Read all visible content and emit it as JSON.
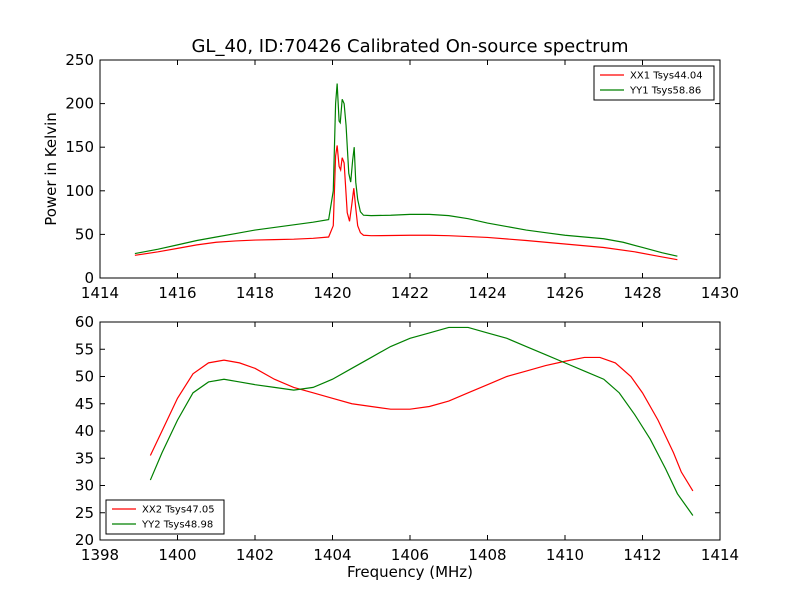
{
  "chart_data": [
    {
      "type": "line",
      "title": "GL_40, ID:70426 Calibrated On-source spectrum",
      "xlabel": "",
      "ylabel": "Power in Kelvin",
      "xlim": [
        1414,
        1430
      ],
      "ylim": [
        0,
        250
      ],
      "xticks": [
        1414,
        1416,
        1418,
        1420,
        1422,
        1424,
        1426,
        1428,
        1430
      ],
      "yticks": [
        0,
        50,
        100,
        150,
        200,
        250
      ],
      "legend_position": "top-right",
      "grid": false,
      "series": [
        {
          "name": "XX1 Tsys44.04",
          "color": "#ff0000",
          "points": [
            [
              1414.9,
              26
            ],
            [
              1415.5,
              30
            ],
            [
              1416.0,
              34
            ],
            [
              1416.5,
              38
            ],
            [
              1417.0,
              41
            ],
            [
              1417.5,
              42.5
            ],
            [
              1418.0,
              43.5
            ],
            [
              1418.5,
              44
            ],
            [
              1419.0,
              44.5
            ],
            [
              1419.5,
              45.5
            ],
            [
              1419.9,
              47
            ],
            [
              1420.02,
              60
            ],
            [
              1420.08,
              140
            ],
            [
              1420.12,
              152
            ],
            [
              1420.17,
              128
            ],
            [
              1420.21,
              124
            ],
            [
              1420.25,
              138
            ],
            [
              1420.3,
              132
            ],
            [
              1420.38,
              75
            ],
            [
              1420.44,
              65
            ],
            [
              1420.5,
              85
            ],
            [
              1420.55,
              103
            ],
            [
              1420.6,
              80
            ],
            [
              1420.65,
              60
            ],
            [
              1420.72,
              52
            ],
            [
              1420.8,
              49
            ],
            [
              1421.0,
              48.5
            ],
            [
              1422.0,
              49
            ],
            [
              1422.5,
              49
            ],
            [
              1423.0,
              48.5
            ],
            [
              1424.0,
              46.5
            ],
            [
              1425.0,
              43
            ],
            [
              1426.0,
              39
            ],
            [
              1427.0,
              35
            ],
            [
              1427.8,
              30
            ],
            [
              1428.4,
              25
            ],
            [
              1428.9,
              21
            ]
          ]
        },
        {
          "name": "YY1 Tsys58.86",
          "color": "#008000",
          "points": [
            [
              1414.9,
              28
            ],
            [
              1415.5,
              33
            ],
            [
              1416.0,
              38
            ],
            [
              1416.5,
              43
            ],
            [
              1417.0,
              47
            ],
            [
              1417.5,
              51
            ],
            [
              1418.0,
              55
            ],
            [
              1418.5,
              58
            ],
            [
              1419.0,
              61
            ],
            [
              1419.5,
              64
            ],
            [
              1419.9,
              67
            ],
            [
              1420.02,
              100
            ],
            [
              1420.08,
              200
            ],
            [
              1420.12,
              223
            ],
            [
              1420.17,
              180
            ],
            [
              1420.2,
              178
            ],
            [
              1420.25,
              205
            ],
            [
              1420.3,
              200
            ],
            [
              1420.35,
              175
            ],
            [
              1420.42,
              120
            ],
            [
              1420.47,
              110
            ],
            [
              1420.52,
              135
            ],
            [
              1420.56,
              150
            ],
            [
              1420.6,
              110
            ],
            [
              1420.65,
              90
            ],
            [
              1420.72,
              76
            ],
            [
              1420.8,
              72
            ],
            [
              1421.0,
              71.5
            ],
            [
              1421.5,
              72
            ],
            [
              1422.0,
              73
            ],
            [
              1422.5,
              73
            ],
            [
              1423.0,
              71.5
            ],
            [
              1423.5,
              68
            ],
            [
              1424.0,
              63
            ],
            [
              1424.5,
              59
            ],
            [
              1425.0,
              55
            ],
            [
              1425.5,
              52
            ],
            [
              1426.0,
              49
            ],
            [
              1426.5,
              47
            ],
            [
              1427.0,
              45
            ],
            [
              1427.5,
              41
            ],
            [
              1428.0,
              35
            ],
            [
              1428.5,
              29
            ],
            [
              1428.9,
              25
            ]
          ]
        }
      ]
    },
    {
      "type": "line",
      "title": "",
      "xlabel": "Frequency (MHz)",
      "ylabel": "",
      "xlim": [
        1398,
        1414
      ],
      "ylim": [
        20,
        60
      ],
      "xticks": [
        1398,
        1400,
        1402,
        1404,
        1406,
        1408,
        1410,
        1412,
        1414
      ],
      "yticks": [
        20,
        25,
        30,
        35,
        40,
        45,
        50,
        55,
        60
      ],
      "legend_position": "bottom-left",
      "grid": false,
      "series": [
        {
          "name": "XX2 Tsys47.05",
          "color": "#ff0000",
          "points": [
            [
              1399.3,
              35.5
            ],
            [
              1399.6,
              40
            ],
            [
              1400.0,
              46
            ],
            [
              1400.4,
              50.5
            ],
            [
              1400.8,
              52.5
            ],
            [
              1401.2,
              53
            ],
            [
              1401.6,
              52.5
            ],
            [
              1402.0,
              51.5
            ],
            [
              1402.5,
              49.5
            ],
            [
              1403.0,
              48
            ],
            [
              1403.5,
              47
            ],
            [
              1404.0,
              46
            ],
            [
              1404.5,
              45
            ],
            [
              1405.0,
              44.5
            ],
            [
              1405.5,
              44
            ],
            [
              1406.0,
              44
            ],
            [
              1406.5,
              44.5
            ],
            [
              1407.0,
              45.5
            ],
            [
              1407.5,
              47
            ],
            [
              1408.0,
              48.5
            ],
            [
              1408.5,
              50
            ],
            [
              1409.0,
              51
            ],
            [
              1409.5,
              52
            ],
            [
              1410.0,
              52.8
            ],
            [
              1410.5,
              53.5
            ],
            [
              1410.9,
              53.5
            ],
            [
              1411.3,
              52.5
            ],
            [
              1411.7,
              50
            ],
            [
              1412.0,
              47
            ],
            [
              1412.4,
              42
            ],
            [
              1412.8,
              36
            ],
            [
              1413.0,
              32.5
            ],
            [
              1413.3,
              29
            ]
          ]
        },
        {
          "name": "YY2 Tsys48.98",
          "color": "#008000",
          "points": [
            [
              1399.3,
              31
            ],
            [
              1399.6,
              36
            ],
            [
              1400.0,
              42
            ],
            [
              1400.4,
              47
            ],
            [
              1400.8,
              49
            ],
            [
              1401.2,
              49.5
            ],
            [
              1401.6,
              49
            ],
            [
              1402.0,
              48.5
            ],
            [
              1402.5,
              48
            ],
            [
              1403.0,
              47.5
            ],
            [
              1403.5,
              48
            ],
            [
              1404.0,
              49.5
            ],
            [
              1404.5,
              51.5
            ],
            [
              1405.0,
              53.5
            ],
            [
              1405.5,
              55.5
            ],
            [
              1406.0,
              57
            ],
            [
              1406.5,
              58
            ],
            [
              1407.0,
              59
            ],
            [
              1407.5,
              59
            ],
            [
              1408.0,
              58
            ],
            [
              1408.5,
              57
            ],
            [
              1409.0,
              55.5
            ],
            [
              1409.5,
              54
            ],
            [
              1410.0,
              52.5
            ],
            [
              1410.5,
              51
            ],
            [
              1411.0,
              49.5
            ],
            [
              1411.4,
              47
            ],
            [
              1411.8,
              43
            ],
            [
              1412.2,
              38.5
            ],
            [
              1412.6,
              33
            ],
            [
              1412.9,
              28.5
            ],
            [
              1413.3,
              24.5
            ]
          ]
        }
      ]
    }
  ]
}
